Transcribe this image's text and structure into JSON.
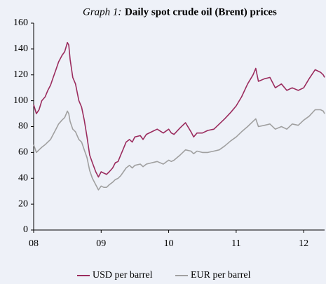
{
  "chart_data": {
    "type": "line",
    "title_label": "Graph 1:",
    "title": "Daily spot crude oil (Brent) prices",
    "x": [
      2008.0,
      2008.04,
      2008.08,
      2008.12,
      2008.17,
      2008.21,
      2008.25,
      2008.29,
      2008.33,
      2008.37,
      2008.42,
      2008.46,
      2008.5,
      2008.52,
      2008.54,
      2008.58,
      2008.62,
      2008.67,
      2008.71,
      2008.75,
      2008.79,
      2008.83,
      2008.87,
      2008.92,
      2008.96,
      2009.0,
      2009.04,
      2009.08,
      2009.12,
      2009.17,
      2009.21,
      2009.25,
      2009.29,
      2009.33,
      2009.37,
      2009.42,
      2009.46,
      2009.5,
      2009.58,
      2009.62,
      2009.67,
      2009.75,
      2009.83,
      2009.92,
      2010.0,
      2010.04,
      2010.08,
      2010.17,
      2010.25,
      2010.33,
      2010.37,
      2010.42,
      2010.5,
      2010.58,
      2010.67,
      2010.75,
      2010.83,
      2010.92,
      2011.0,
      2011.08,
      2011.17,
      2011.25,
      2011.29,
      2011.33,
      2011.42,
      2011.5,
      2011.58,
      2011.67,
      2011.75,
      2011.83,
      2011.92,
      2012.0,
      2012.08,
      2012.17,
      2012.25,
      2012.29,
      2012.31
    ],
    "series": [
      {
        "name": "USD per barrel",
        "color": "#9b2c5e",
        "values": [
          97,
          90,
          93,
          100,
          103,
          108,
          112,
          118,
          124,
          130,
          135,
          138,
          145,
          143,
          132,
          118,
          113,
          100,
          95,
          85,
          72,
          58,
          52,
          45,
          41,
          45,
          44,
          43,
          45,
          48,
          52,
          53,
          58,
          63,
          68,
          70,
          68,
          72,
          73,
          70,
          74,
          76,
          78,
          75,
          78,
          75,
          74,
          79,
          83,
          76,
          72,
          75,
          75,
          77,
          78,
          82,
          86,
          91,
          96,
          103,
          113,
          120,
          125,
          115,
          117,
          118,
          110,
          113,
          108,
          110,
          108,
          110,
          117,
          124,
          122,
          120,
          118
        ]
      },
      {
        "name": "EUR per barrel",
        "color": "#a0a0a0",
        "values": [
          66,
          60,
          62,
          64,
          66,
          68,
          70,
          74,
          78,
          82,
          85,
          87,
          92,
          90,
          84,
          78,
          76,
          70,
          68,
          62,
          56,
          46,
          40,
          35,
          31,
          34,
          33,
          33,
          35,
          37,
          39,
          40,
          42,
          45,
          48,
          50,
          48,
          50,
          51,
          49,
          51,
          52,
          53,
          51,
          54,
          53,
          54,
          58,
          62,
          61,
          59,
          61,
          60,
          60,
          61,
          62,
          65,
          69,
          72,
          76,
          80,
          84,
          86,
          80,
          81,
          82,
          78,
          80,
          78,
          82,
          81,
          85,
          88,
          93,
          93,
          92,
          90
        ]
      }
    ],
    "xlim": [
      2008,
      2012.31
    ],
    "xticks": [
      {
        "value": 2008,
        "label": "08"
      },
      {
        "value": 2009,
        "label": "09"
      },
      {
        "value": 2010,
        "label": "10"
      },
      {
        "value": 2011,
        "label": "11"
      },
      {
        "value": 2012,
        "label": "12"
      }
    ],
    "ylim": [
      0,
      160
    ],
    "yticks": [
      0,
      20,
      40,
      60,
      80,
      100,
      120,
      140,
      160
    ],
    "legend": "bottom"
  }
}
